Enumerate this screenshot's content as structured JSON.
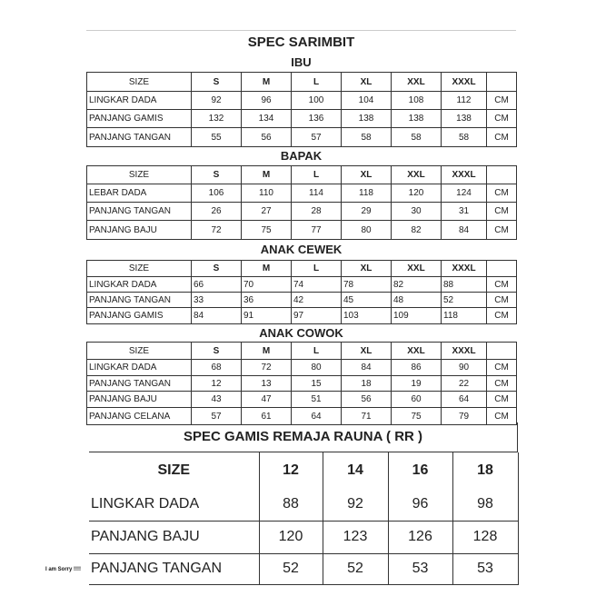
{
  "title": "SPEC SARIMBIT",
  "sizes": [
    "S",
    "M",
    "L",
    "XL",
    "XXL",
    "XXXL"
  ],
  "size_label": "SIZE",
  "unit": "CM",
  "sections": [
    {
      "name": "IBU",
      "align": "center",
      "rows": [
        {
          "label": "LINGKAR DADA",
          "values": [
            "92",
            "96",
            "100",
            "104",
            "108",
            "112"
          ]
        },
        {
          "label": "PANJANG GAMIS",
          "values": [
            "132",
            "134",
            "136",
            "138",
            "138",
            "138"
          ]
        },
        {
          "label": "PANJANG TANGAN",
          "values": [
            "55",
            "56",
            "57",
            "58",
            "58",
            "58"
          ]
        }
      ]
    },
    {
      "name": "BAPAK",
      "align": "center",
      "rows": [
        {
          "label": "LEBAR DADA",
          "values": [
            "106",
            "110",
            "114",
            "118",
            "120",
            "124"
          ]
        },
        {
          "label": "PANJANG TANGAN",
          "values": [
            "26",
            "27",
            "28",
            "29",
            "30",
            "31"
          ]
        },
        {
          "label": "PANJANG BAJU",
          "values": [
            "72",
            "75",
            "77",
            "80",
            "82",
            "84"
          ]
        }
      ]
    },
    {
      "name": "ANAK CEWEK",
      "align": "left",
      "rows": [
        {
          "label": "LINGKAR DADA",
          "values": [
            "66",
            "70",
            "74",
            "78",
            "82",
            "88"
          ]
        },
        {
          "label": "PANJANG TANGAN",
          "values": [
            "33",
            "36",
            "42",
            "45",
            "48",
            "52"
          ]
        },
        {
          "label": "PANJANG GAMIS",
          "values": [
            "84",
            "91",
            "97",
            "103",
            "109",
            "118"
          ]
        }
      ]
    },
    {
      "name": "ANAK COWOK",
      "align": "center",
      "rows": [
        {
          "label": "LINGKAR DADA",
          "values": [
            "68",
            "72",
            "80",
            "84",
            "86",
            "90"
          ]
        },
        {
          "label": "PANJANG TANGAN",
          "values": [
            "12",
            "13",
            "15",
            "18",
            "19",
            "22"
          ]
        },
        {
          "label": "PANJANG BAJU",
          "values": [
            "43",
            "47",
            "51",
            "56",
            "60",
            "64"
          ]
        },
        {
          "label": "PANJANG CELANA",
          "values": [
            "57",
            "61",
            "64",
            "71",
            "75",
            "79"
          ]
        }
      ]
    }
  ],
  "remaja": {
    "title": "SPEC GAMIS REMAJA RAUNA ( RR )",
    "size_label": "SIZE",
    "sizes": [
      "12",
      "14",
      "16",
      "18"
    ],
    "rows": [
      {
        "label": "LINGKAR DADA",
        "values": [
          "88",
          "92",
          "96",
          "98"
        ]
      },
      {
        "label": "PANJANG BAJU",
        "values": [
          "120",
          "123",
          "126",
          "128"
        ]
      },
      {
        "label": "PANJANG TANGAN",
        "values": [
          "52",
          "52",
          "53",
          "53"
        ]
      }
    ]
  },
  "note": "I am Sorry !!!!"
}
